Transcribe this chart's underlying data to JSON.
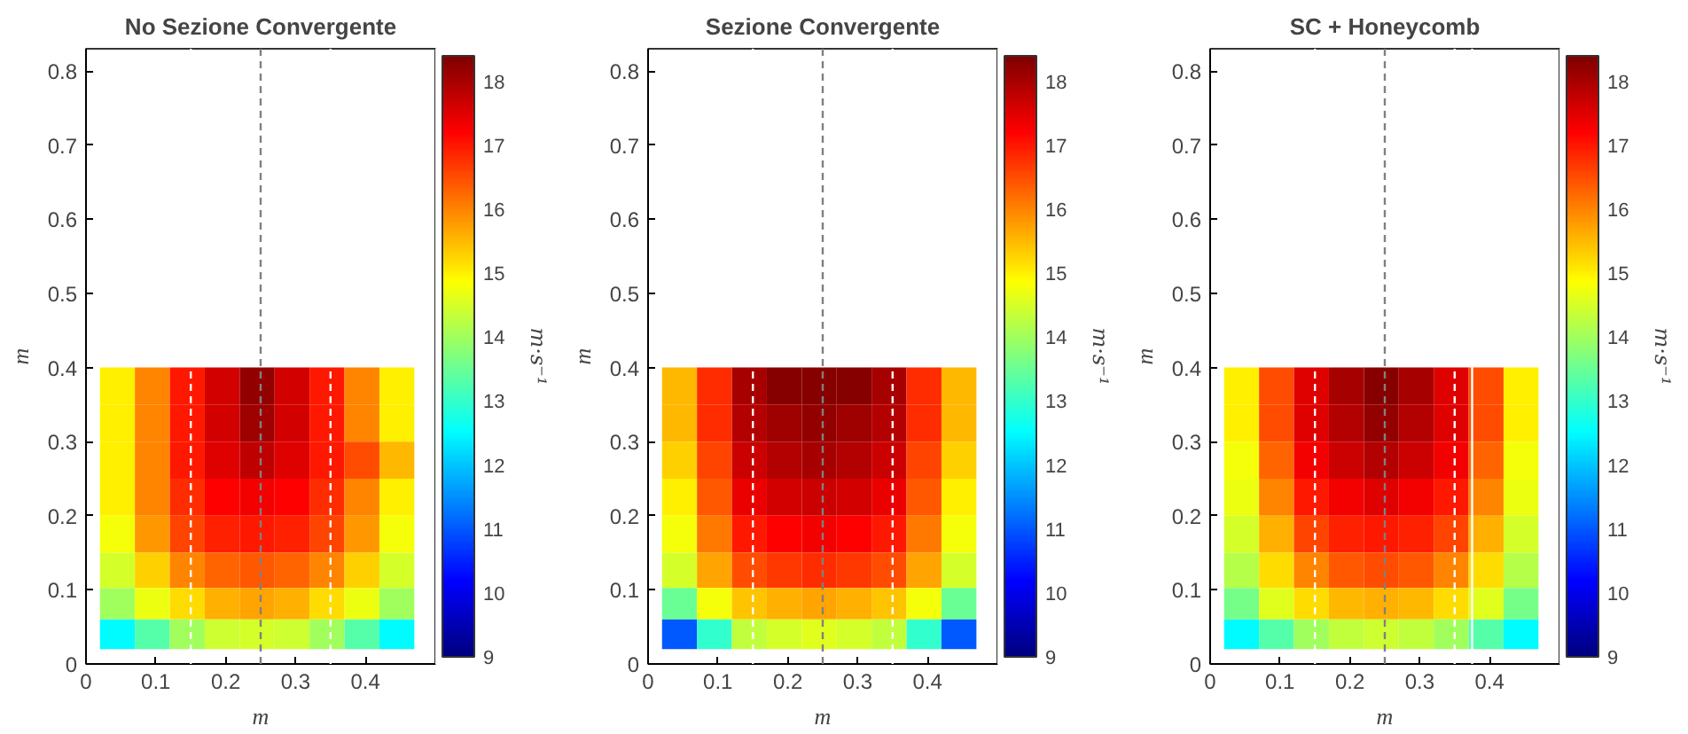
{
  "chart_data": [
    {
      "type": "heatmap",
      "title": "No Sezione Convergente",
      "xlabel": "m",
      "ylabel": "m",
      "clabel": "m·s⁻¹",
      "x": [
        0.045,
        0.095,
        0.145,
        0.195,
        0.245,
        0.295,
        0.345,
        0.395,
        0.445
      ],
      "y": [
        0.375,
        0.325,
        0.275,
        0.225,
        0.175,
        0.125,
        0.08,
        0.04
      ],
      "cells": [
        [
          15,
          16,
          17,
          17.6,
          18.2,
          17.6,
          17,
          16,
          15
        ],
        [
          15,
          16,
          17,
          17.6,
          18.1,
          17.6,
          17,
          16,
          15
        ],
        [
          15,
          16,
          17,
          17.5,
          17.8,
          17.5,
          17,
          16.5,
          15.5
        ],
        [
          15,
          16,
          16.8,
          17.2,
          17.3,
          17.2,
          16.8,
          16,
          15
        ],
        [
          14.8,
          15.8,
          16.6,
          16.9,
          17,
          16.9,
          16.6,
          15.8,
          14.8
        ],
        [
          14.5,
          15.3,
          16,
          16.3,
          16.4,
          16.3,
          16,
          15.3,
          14.5
        ],
        [
          14,
          14.7,
          15.2,
          15.6,
          15.7,
          15.6,
          15.2,
          14.7,
          14
        ],
        [
          12.5,
          13.3,
          14,
          14.4,
          14.5,
          14.4,
          14,
          13.3,
          12.5
        ]
      ],
      "clim": [
        9,
        18.4
      ],
      "cticks": [
        9,
        10,
        11,
        12,
        13,
        14,
        15,
        16,
        17,
        18
      ],
      "xlim": [
        0,
        0.5
      ],
      "xticks": [
        0,
        0.1,
        0.2,
        0.3,
        0.4
      ],
      "ylim": [
        0,
        0.83
      ],
      "yticks": [
        0,
        0.1,
        0.2,
        0.3,
        0.4,
        0.5,
        0.6,
        0.7,
        0.8
      ],
      "ref_lines": [
        {
          "axis": "x",
          "value": 0.15,
          "color": "#ffffff",
          "line_style": "dashed"
        },
        {
          "axis": "x",
          "value": 0.25,
          "color": "#808080",
          "line_style": "dashed"
        },
        {
          "axis": "x",
          "value": 0.35,
          "color": "#ffffff",
          "line_style": "dashed"
        }
      ],
      "grid": false
    },
    {
      "type": "heatmap",
      "title": "Sezione Convergente",
      "xlabel": "m",
      "ylabel": "m",
      "clabel": "m·s⁻¹",
      "x": [
        0.045,
        0.095,
        0.145,
        0.195,
        0.245,
        0.295,
        0.345,
        0.395,
        0.445
      ],
      "y": [
        0.375,
        0.325,
        0.275,
        0.225,
        0.175,
        0.125,
        0.08,
        0.04
      ],
      "cells": [
        [
          15.5,
          16.8,
          18,
          18.3,
          18.3,
          18.3,
          18,
          16.8,
          15.5
        ],
        [
          15.5,
          16.8,
          17.9,
          18.1,
          18.2,
          18.1,
          17.9,
          16.8,
          15.5
        ],
        [
          15.3,
          16.6,
          17.7,
          17.9,
          18,
          17.9,
          17.7,
          16.6,
          15.3
        ],
        [
          15,
          16.4,
          17.4,
          17.6,
          17.7,
          17.6,
          17.4,
          16.4,
          15
        ],
        [
          14.8,
          16.1,
          17,
          17.2,
          17.3,
          17.2,
          17,
          16.1,
          14.8
        ],
        [
          14.5,
          15.7,
          16.5,
          16.7,
          16.8,
          16.7,
          16.5,
          15.7,
          14.5
        ],
        [
          13.5,
          14.8,
          15.4,
          15.6,
          15.7,
          15.6,
          15.4,
          14.8,
          13.5
        ],
        [
          11,
          13,
          14.3,
          14.5,
          14.6,
          14.5,
          14.3,
          13,
          11
        ]
      ],
      "clim": [
        9,
        18.4
      ],
      "cticks": [
        9,
        10,
        11,
        12,
        13,
        14,
        15,
        16,
        17,
        18
      ],
      "xlim": [
        0,
        0.5
      ],
      "xticks": [
        0,
        0.1,
        0.2,
        0.3,
        0.4
      ],
      "ylim": [
        0,
        0.83
      ],
      "yticks": [
        0,
        0.1,
        0.2,
        0.3,
        0.4,
        0.5,
        0.6,
        0.7,
        0.8
      ],
      "ref_lines": [
        {
          "axis": "x",
          "value": 0.15,
          "color": "#ffffff",
          "line_style": "dashed"
        },
        {
          "axis": "x",
          "value": 0.25,
          "color": "#808080",
          "line_style": "dashed"
        },
        {
          "axis": "x",
          "value": 0.35,
          "color": "#ffffff",
          "line_style": "dashed"
        }
      ],
      "grid": false
    },
    {
      "type": "heatmap",
      "title": "SC + Honeycomb",
      "xlabel": "m",
      "ylabel": "m",
      "clabel": "m·s⁻¹",
      "x": [
        0.045,
        0.095,
        0.145,
        0.195,
        0.245,
        0.295,
        0.345,
        0.395,
        0.445
      ],
      "y": [
        0.375,
        0.325,
        0.275,
        0.225,
        0.175,
        0.125,
        0.08,
        0.04
      ],
      "cells": [
        [
          15,
          16.5,
          17.5,
          18,
          18.3,
          18,
          17.5,
          16.5,
          15
        ],
        [
          15,
          16.5,
          17.5,
          17.9,
          18.2,
          17.9,
          17.5,
          16.5,
          15
        ],
        [
          14.8,
          16.3,
          17.3,
          17.7,
          17.9,
          17.7,
          17.3,
          16.3,
          14.8
        ],
        [
          14.7,
          16,
          17,
          17.3,
          17.5,
          17.3,
          17,
          16,
          14.7
        ],
        [
          14.5,
          15.6,
          16.6,
          16.9,
          17,
          16.9,
          16.6,
          15.6,
          14.5
        ],
        [
          14.2,
          15.2,
          16,
          16.4,
          16.5,
          16.4,
          16,
          15.2,
          14.2
        ],
        [
          13.6,
          14.6,
          15.2,
          15.5,
          15.6,
          15.5,
          15.2,
          14.6,
          13.6
        ],
        [
          12.5,
          13.3,
          14,
          14.3,
          14.4,
          14.3,
          14,
          13.3,
          12.5
        ]
      ],
      "clim": [
        9,
        18.4
      ],
      "cticks": [
        9,
        10,
        11,
        12,
        13,
        14,
        15,
        16,
        17,
        18
      ],
      "xlim": [
        0,
        0.5
      ],
      "xticks": [
        0,
        0.1,
        0.2,
        0.3,
        0.4
      ],
      "ylim": [
        0,
        0.83
      ],
      "yticks": [
        0,
        0.1,
        0.2,
        0.3,
        0.4,
        0.5,
        0.6,
        0.7,
        0.8
      ],
      "ref_lines": [
        {
          "axis": "x",
          "value": 0.15,
          "color": "#ffffff",
          "line_style": "dashed"
        },
        {
          "axis": "x",
          "value": 0.25,
          "color": "#808080",
          "line_style": "dashed"
        },
        {
          "axis": "x",
          "value": 0.35,
          "color": "#ffffff",
          "line_style": "dashed"
        },
        {
          "axis": "x",
          "value": 0.375,
          "color": "#ffffff",
          "line_style": "solid"
        }
      ],
      "grid": false
    }
  ]
}
